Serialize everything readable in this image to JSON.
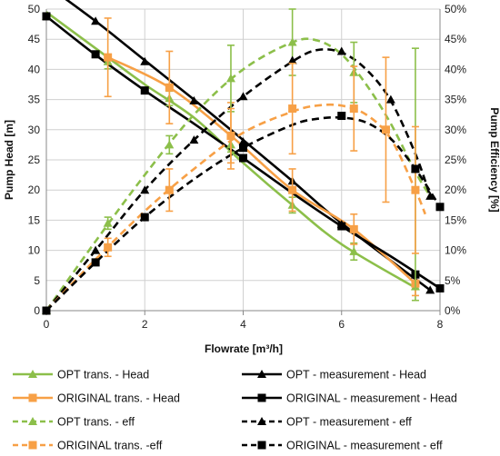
{
  "chart_data": {
    "type": "line",
    "xlabel": "Flowrate [m³/h]",
    "ylabel": "Pump Head [m]",
    "y2label": "Pump Efficiency [%]",
    "xlim": [
      0,
      8
    ],
    "ylim": [
      0,
      50
    ],
    "y2lim": [
      0,
      50
    ],
    "x_ticks": [
      "0",
      "2",
      "4",
      "6",
      "8"
    ],
    "y_ticks": [
      "0",
      "5",
      "10",
      "15",
      "20",
      "25",
      "30",
      "35",
      "40",
      "45",
      "50"
    ],
    "y2_ticks": [
      "0%",
      "5%",
      "10%",
      "15%",
      "20%",
      "25%",
      "30%",
      "35%",
      "40%",
      "45%",
      "50%"
    ],
    "grid": true,
    "legend_position": "bottom",
    "series": [
      {
        "name": "OPT trans. - Head",
        "axis": "left",
        "color": "#8cbf4a",
        "dash": false,
        "marker": "triangle",
        "x": [
          0,
          1.25,
          2.5,
          3.75,
          5,
          6.25,
          7.5
        ],
        "y": [
          48.8,
          41.3,
          35.2,
          27.5,
          17.5,
          9.8,
          4.0
        ],
        "error": [
          0,
          1.2,
          1.2,
          1.2,
          1.3,
          1.4,
          2.3
        ],
        "curve": [
          [
            0,
            49.5
          ],
          [
            1,
            43.5
          ],
          [
            2,
            37.5
          ],
          [
            3,
            32.0
          ],
          [
            4,
            24.5
          ],
          [
            5,
            17.5
          ],
          [
            6,
            11.0
          ],
          [
            7.5,
            3.8
          ]
        ]
      },
      {
        "name": "OPT - measurement - Head",
        "axis": "left",
        "color": "#000000",
        "dash": false,
        "marker": "triangle",
        "x": [
          1,
          2,
          3,
          4,
          5,
          6,
          7.8
        ],
        "y": [
          48.0,
          41.3,
          34.8,
          28.0,
          21.5,
          14.3,
          3.4
        ],
        "curve": [
          [
            0,
            54.0
          ],
          [
            1,
            48.0
          ],
          [
            2,
            41.5
          ],
          [
            3,
            35.0
          ],
          [
            4,
            28.3
          ],
          [
            5,
            21.5
          ],
          [
            6,
            14.5
          ],
          [
            7.8,
            3.4
          ]
        ]
      },
      {
        "name": "ORIGINAL trans. - Head",
        "axis": "left",
        "color": "#f7a046",
        "dash": false,
        "marker": "square",
        "x": [
          1.25,
          2.5,
          3.75,
          5,
          6.25,
          7.5
        ],
        "y": [
          42.0,
          37.0,
          29.0,
          20.0,
          13.5,
          4.5
        ],
        "error": [
          6.5,
          6.0,
          5.5,
          3.5,
          2.5,
          2.0
        ],
        "curve": [
          [
            1.25,
            42.0
          ],
          [
            2.5,
            37.0
          ],
          [
            3.75,
            29.0
          ],
          [
            5,
            20.0
          ],
          [
            6.25,
            13.5
          ],
          [
            7.5,
            4.5
          ]
        ]
      },
      {
        "name": "ORIGINAL - measurement - Head",
        "axis": "left",
        "color": "#000000",
        "dash": false,
        "marker": "square",
        "x": [
          0,
          1,
          2,
          4,
          6,
          7.5,
          8
        ],
        "y": [
          48.8,
          42.5,
          36.5,
          25.3,
          14.0,
          6.0,
          3.7
        ],
        "curve": [
          [
            0,
            48.8
          ],
          [
            1,
            42.4
          ],
          [
            2,
            36.5
          ],
          [
            3,
            31.0
          ],
          [
            4,
            25.3
          ],
          [
            5,
            19.5
          ],
          [
            6,
            14.0
          ],
          [
            7,
            9.0
          ],
          [
            8,
            3.7
          ]
        ]
      },
      {
        "name": "OPT trans. - eff",
        "axis": "right",
        "color": "#8cbf4a",
        "dash": true,
        "marker": "triangle",
        "x": [
          0,
          1.25,
          2.5,
          3.75,
          5,
          6.25,
          7.5
        ],
        "y": [
          0,
          14.5,
          27.5,
          38.5,
          44.5,
          39.5,
          23.5
        ],
        "error": [
          0,
          1.0,
          1.5,
          5.5,
          5.5,
          5.0,
          20.0
        ],
        "curve": [
          [
            0,
            0
          ],
          [
            1,
            11.5
          ],
          [
            2,
            22.5
          ],
          [
            3,
            32.5
          ],
          [
            4,
            40.0
          ],
          [
            5,
            44.5
          ],
          [
            5.5,
            44.8
          ],
          [
            6,
            42.5
          ],
          [
            6.5,
            37.5
          ],
          [
            7,
            31.0
          ],
          [
            7.5,
            23.0
          ],
          [
            7.8,
            19.0
          ]
        ]
      },
      {
        "name": "OPT - measurement - eff",
        "axis": "right",
        "color": "#000000",
        "dash": true,
        "marker": "triangle",
        "x": [
          1,
          2,
          3,
          4,
          5,
          6,
          7,
          7.8
        ],
        "y": [
          10.0,
          20.0,
          28.3,
          35.5,
          41.5,
          43.0,
          35.0,
          19.0
        ],
        "curve": [
          [
            0,
            0
          ],
          [
            1,
            10.0
          ],
          [
            2,
            20.0
          ],
          [
            3,
            28.3
          ],
          [
            4,
            35.5
          ],
          [
            5,
            41.3
          ],
          [
            5.5,
            43.2
          ],
          [
            6,
            42.8
          ],
          [
            6.5,
            40.0
          ],
          [
            7,
            34.8
          ],
          [
            7.5,
            26.0
          ],
          [
            7.8,
            19.0
          ]
        ]
      },
      {
        "name": "ORIGINAL trans. -eff",
        "axis": "right",
        "color": "#f7a046",
        "dash": true,
        "marker": "square",
        "x": [
          0,
          1.25,
          2.5,
          3.75,
          5,
          6.25,
          6.9,
          7.5
        ],
        "y": [
          0,
          10.5,
          20.0,
          29.0,
          33.5,
          33.5,
          30.0,
          20.0
        ],
        "error": [
          0,
          1.5,
          3.5,
          4.5,
          7.5,
          7.0,
          12.0,
          10.5
        ],
        "curve": [
          [
            0,
            0
          ],
          [
            1,
            8.5
          ],
          [
            2,
            16.5
          ],
          [
            3,
            23.5
          ],
          [
            4,
            29.5
          ],
          [
            5,
            33.0
          ],
          [
            5.5,
            34.0
          ],
          [
            6,
            34.0
          ],
          [
            6.5,
            32.5
          ],
          [
            7,
            28.5
          ],
          [
            7.5,
            20.0
          ],
          [
            7.7,
            16.0
          ]
        ]
      },
      {
        "name": "ORIGINAL - measurement - eff",
        "axis": "right",
        "color": "#000000",
        "dash": true,
        "marker": "square",
        "x": [
          0,
          1,
          2,
          4,
          6,
          7.5,
          8
        ],
        "y": [
          0,
          8.0,
          15.5,
          27.0,
          32.3,
          23.5,
          17.2
        ],
        "curve": [
          [
            0,
            0
          ],
          [
            1,
            8.0
          ],
          [
            2,
            15.5
          ],
          [
            3,
            21.8
          ],
          [
            4,
            27.0
          ],
          [
            5,
            30.8
          ],
          [
            5.5,
            31.8
          ],
          [
            6,
            32.0
          ],
          [
            6.5,
            31.2
          ],
          [
            7,
            28.5
          ],
          [
            7.5,
            23.5
          ],
          [
            8,
            17.2
          ]
        ]
      }
    ]
  }
}
